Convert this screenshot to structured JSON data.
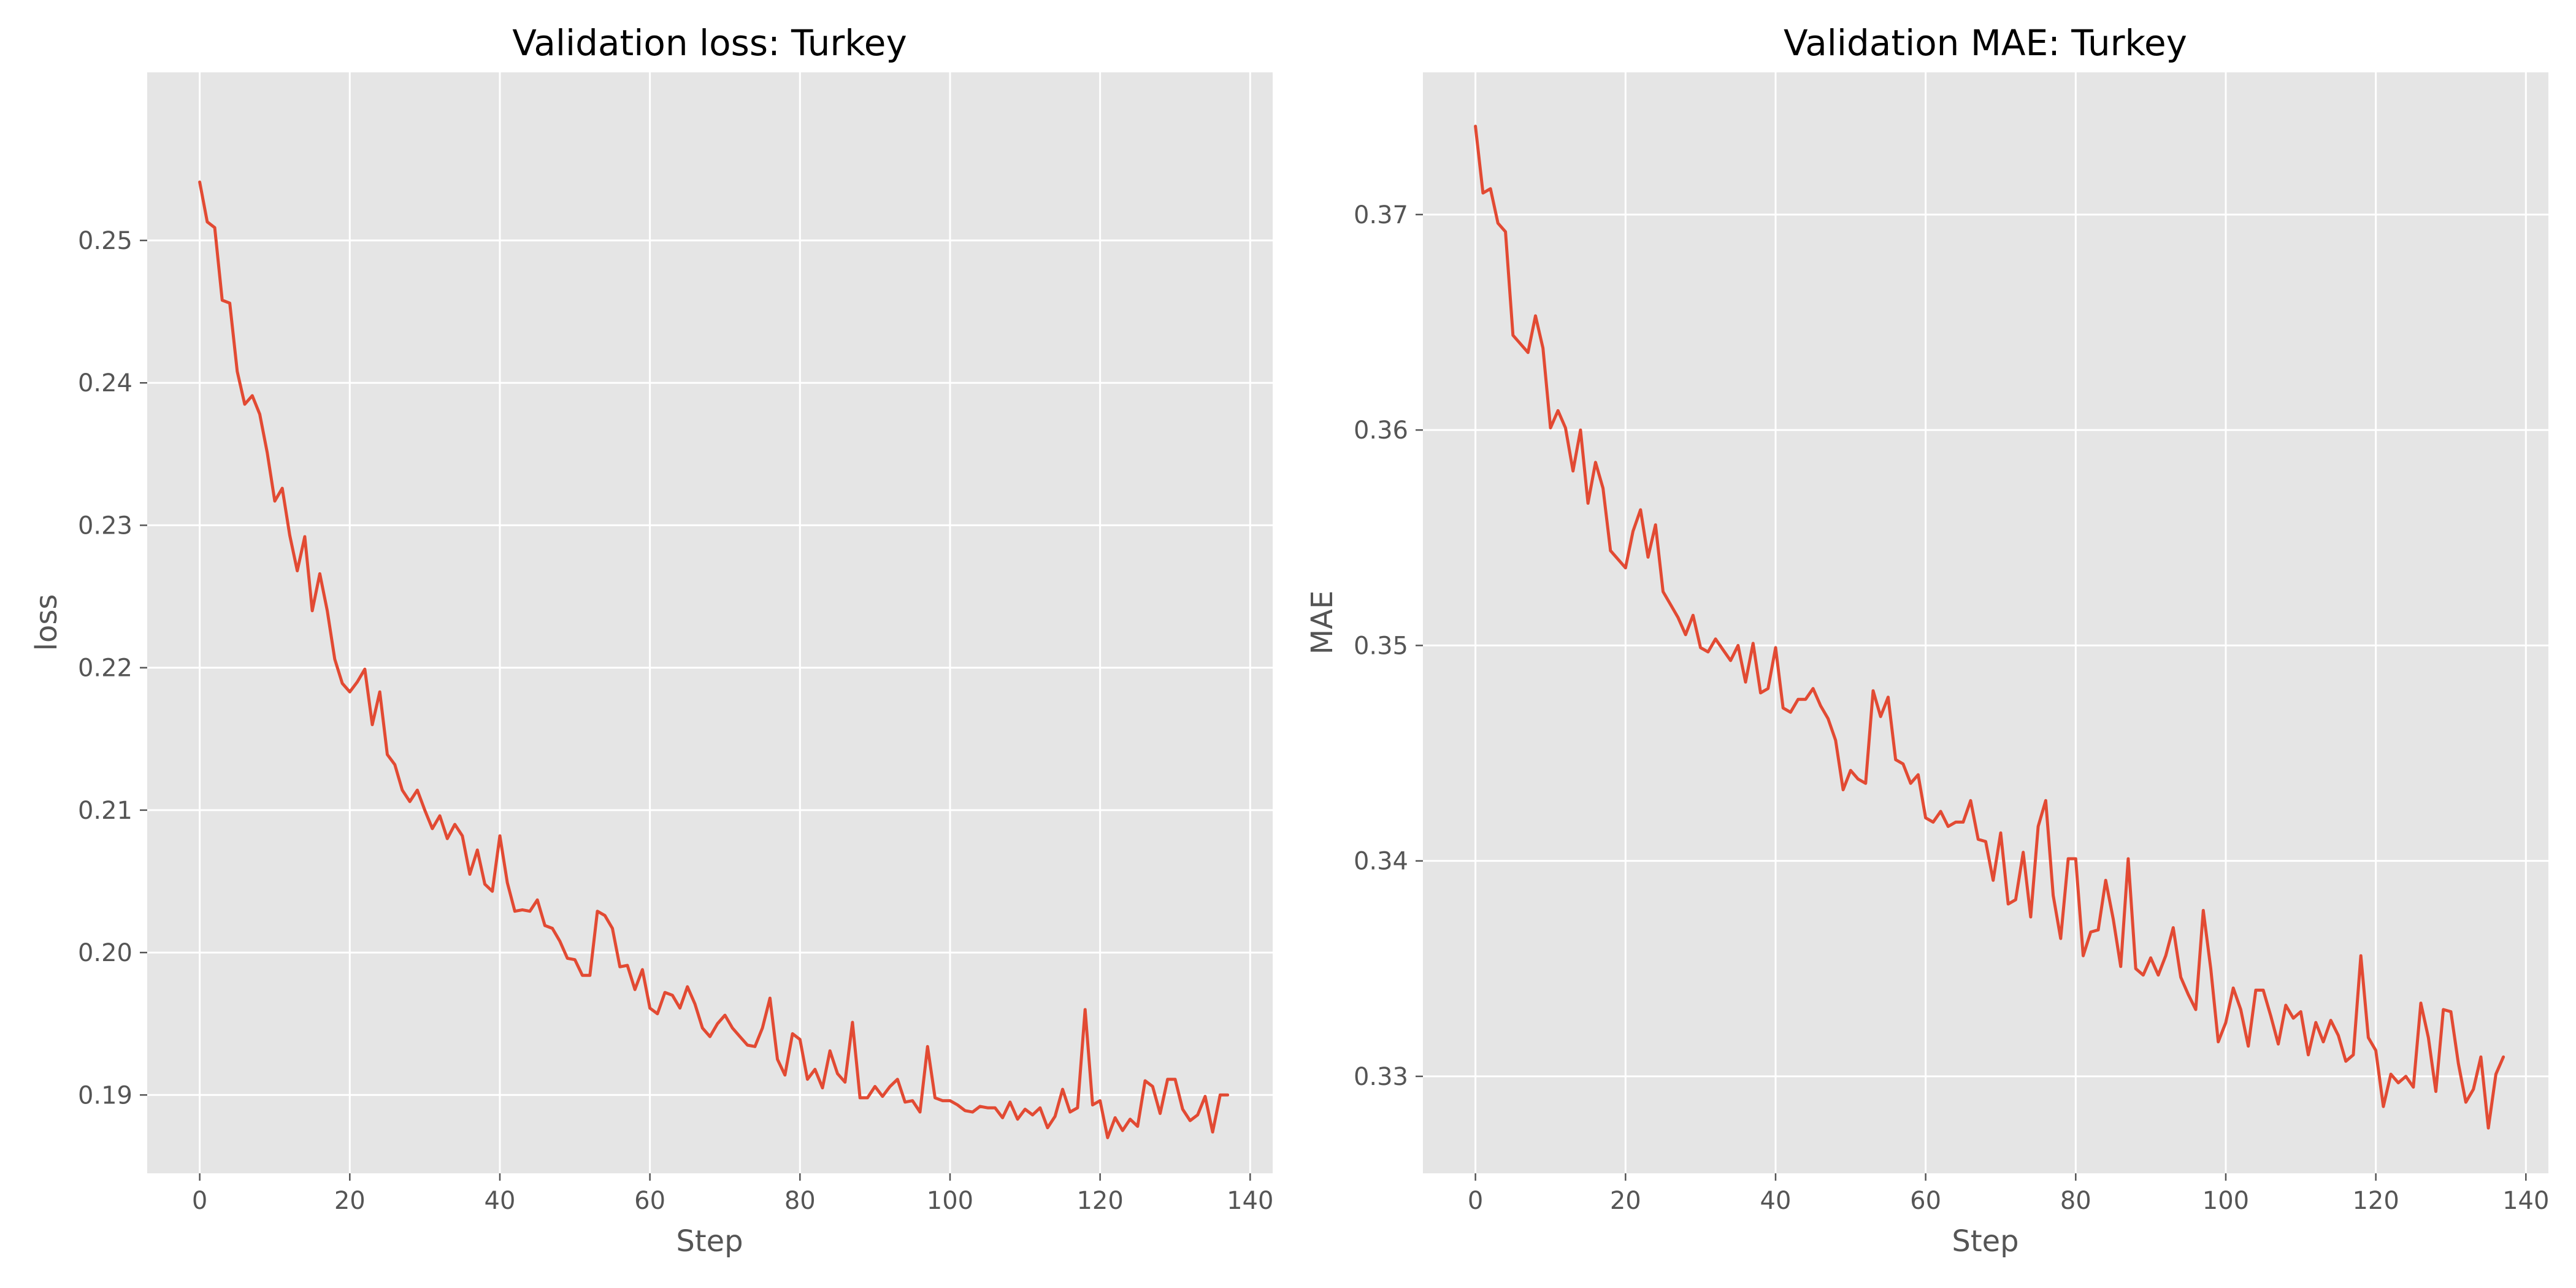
{
  "colors": {
    "series": "#E24A33",
    "plot_bg": "#E5E5E5",
    "grid": "#FFFFFF",
    "text": "#555555"
  },
  "chart_data": [
    {
      "type": "line",
      "title": "Validation loss: Turkey",
      "xlabel": "Step",
      "ylabel": "loss",
      "xlim": [
        -7,
        143
      ],
      "ylim": [
        0.1845,
        0.2618
      ],
      "xticks": [
        0,
        20,
        40,
        60,
        80,
        100,
        120,
        140
      ],
      "yticks": [
        0.19,
        0.2,
        0.21,
        0.22,
        0.23,
        0.24,
        0.25
      ],
      "ytick_labels": [
        "0.19",
        "0.20",
        "0.21",
        "0.22",
        "0.23",
        "0.24",
        "0.25"
      ],
      "grid": true,
      "series": [
        {
          "values": [
            0.2541,
            0.2513,
            0.2509,
            0.2458,
            0.2456,
            0.2408,
            0.2385,
            0.2391,
            0.2378,
            0.2351,
            0.2317,
            0.2326,
            0.2293,
            0.2268,
            0.2292,
            0.224,
            0.2266,
            0.224,
            0.2206,
            0.2189,
            0.2183,
            0.219,
            0.2199,
            0.216,
            0.2183,
            0.2139,
            0.2132,
            0.2114,
            0.2106,
            0.2114,
            0.21,
            0.2087,
            0.2096,
            0.208,
            0.209,
            0.2082,
            0.2055,
            0.2072,
            0.2048,
            0.2043,
            0.2082,
            0.2049,
            0.2029,
            0.203,
            0.2029,
            0.2037,
            0.2019,
            0.2017,
            0.2008,
            0.1996,
            0.1995,
            0.1984,
            0.1984,
            0.2029,
            0.2026,
            0.2017,
            0.199,
            0.1991,
            0.1974,
            0.1988,
            0.1961,
            0.1957,
            0.1972,
            0.197,
            0.1961,
            0.1976,
            0.1964,
            0.1947,
            0.1941,
            0.195,
            0.1956,
            0.1947,
            0.1941,
            0.1935,
            0.1934,
            0.1947,
            0.1968,
            0.1925,
            0.1914,
            0.1943,
            0.1939,
            0.1911,
            0.1918,
            0.1905,
            0.1931,
            0.1915,
            0.1909,
            0.1951,
            0.1898,
            0.1898,
            0.1906,
            0.1899,
            0.1906,
            0.1911,
            0.1895,
            0.1896,
            0.1888,
            0.1934,
            0.1898,
            0.1896,
            0.1896,
            0.1893,
            0.1889,
            0.1888,
            0.1892,
            0.1891,
            0.1891,
            0.1884,
            0.1895,
            0.1883,
            0.189,
            0.1886,
            0.1891,
            0.1877,
            0.1885,
            0.1904,
            0.1888,
            0.1891,
            0.196,
            0.1893,
            0.1896,
            0.187,
            0.1884,
            0.1875,
            0.1883,
            0.1878,
            0.191,
            0.1906,
            0.1887,
            0.1911,
            0.1911,
            0.189,
            0.1882,
            0.1886,
            0.1899,
            0.1874,
            0.19,
            0.19
          ]
        }
      ]
    },
    {
      "type": "line",
      "title": "Validation MAE: Turkey",
      "xlabel": "Step",
      "ylabel": "MAE",
      "xlim": [
        -7,
        143
      ],
      "ylim": [
        0.3255,
        0.3766
      ],
      "xticks": [
        0,
        20,
        40,
        60,
        80,
        100,
        120,
        140
      ],
      "yticks": [
        0.33,
        0.34,
        0.35,
        0.36,
        0.37
      ],
      "ytick_labels": [
        "0.33",
        "0.34",
        "0.35",
        "0.36",
        "0.37"
      ],
      "grid": true,
      "series": [
        {
          "values": [
            0.3741,
            0.371,
            0.3712,
            0.3696,
            0.3692,
            0.3644,
            0.364,
            0.3636,
            0.3653,
            0.3638,
            0.3601,
            0.3609,
            0.3601,
            0.3581,
            0.36,
            0.3566,
            0.3585,
            0.3573,
            0.3544,
            0.354,
            0.3536,
            0.3553,
            0.3563,
            0.3541,
            0.3556,
            0.3525,
            0.3519,
            0.3513,
            0.3505,
            0.3514,
            0.3499,
            0.3497,
            0.3503,
            0.3498,
            0.3493,
            0.35,
            0.3483,
            0.3501,
            0.3478,
            0.348,
            0.3499,
            0.3471,
            0.3469,
            0.3475,
            0.3475,
            0.348,
            0.3472,
            0.3466,
            0.3456,
            0.3433,
            0.3442,
            0.3438,
            0.3436,
            0.3479,
            0.3467,
            0.3476,
            0.3447,
            0.3445,
            0.3436,
            0.344,
            0.342,
            0.3418,
            0.3423,
            0.3416,
            0.3418,
            0.3418,
            0.3428,
            0.341,
            0.3409,
            0.3391,
            0.3413,
            0.338,
            0.3382,
            0.3404,
            0.3374,
            0.3416,
            0.3428,
            0.3384,
            0.3364,
            0.3401,
            0.3401,
            0.3356,
            0.3367,
            0.3368,
            0.3391,
            0.3373,
            0.3351,
            0.3401,
            0.335,
            0.3347,
            0.3355,
            0.3347,
            0.3356,
            0.3369,
            0.3346,
            0.3338,
            0.3331,
            0.3377,
            0.335,
            0.3316,
            0.3325,
            0.3341,
            0.3331,
            0.3314,
            0.334,
            0.334,
            0.3328,
            0.3315,
            0.3333,
            0.3327,
            0.333,
            0.331,
            0.3325,
            0.3316,
            0.3326,
            0.3319,
            0.3307,
            0.331,
            0.3356,
            0.3318,
            0.3312,
            0.3286,
            0.3301,
            0.3297,
            0.33,
            0.3295,
            0.3334,
            0.3318,
            0.3293,
            0.3331,
            0.333,
            0.3306,
            0.3288,
            0.3294,
            0.3309,
            0.3276,
            0.3301,
            0.3309
          ]
        }
      ]
    }
  ]
}
